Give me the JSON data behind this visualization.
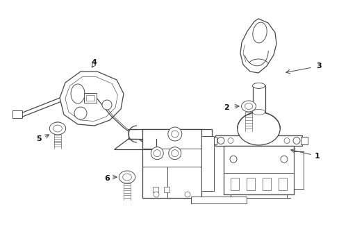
{
  "background_color": "#ffffff",
  "line_color": "#444444",
  "label_color": "#111111",
  "fig_width": 4.89,
  "fig_height": 3.6,
  "dpi": 100
}
